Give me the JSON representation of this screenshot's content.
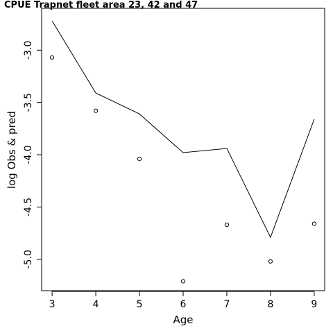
{
  "chart_data": {
    "type": "line",
    "title": "CPUE Trapnet fleet area 23, 42 and 47",
    "xlabel": "Age",
    "ylabel": "log Obs & pred",
    "x": [
      3,
      4,
      5,
      6,
      7,
      8,
      9
    ],
    "series": [
      {
        "style": "line",
        "values": [
          -2.72,
          -3.41,
          -3.61,
          -3.98,
          -3.94,
          -4.79,
          -3.66
        ]
      },
      {
        "style": "points",
        "values": [
          -3.07,
          -3.58,
          -4.04,
          -5.21,
          -4.67,
          -5.02,
          -4.66
        ]
      }
    ],
    "xlim": [
      2.76,
      9.24
    ],
    "ylim": [
      -5.3,
      -2.6
    ],
    "xticks": [
      3,
      4,
      5,
      6,
      7,
      8,
      9
    ],
    "yticks": [
      -3.0,
      -3.5,
      -4.0,
      -4.5,
      -5.0
    ],
    "ytick_labels": [
      "-3.0",
      "-3.5",
      "-4.0",
      "-4.5",
      "-5.0"
    ],
    "grid": false
  }
}
